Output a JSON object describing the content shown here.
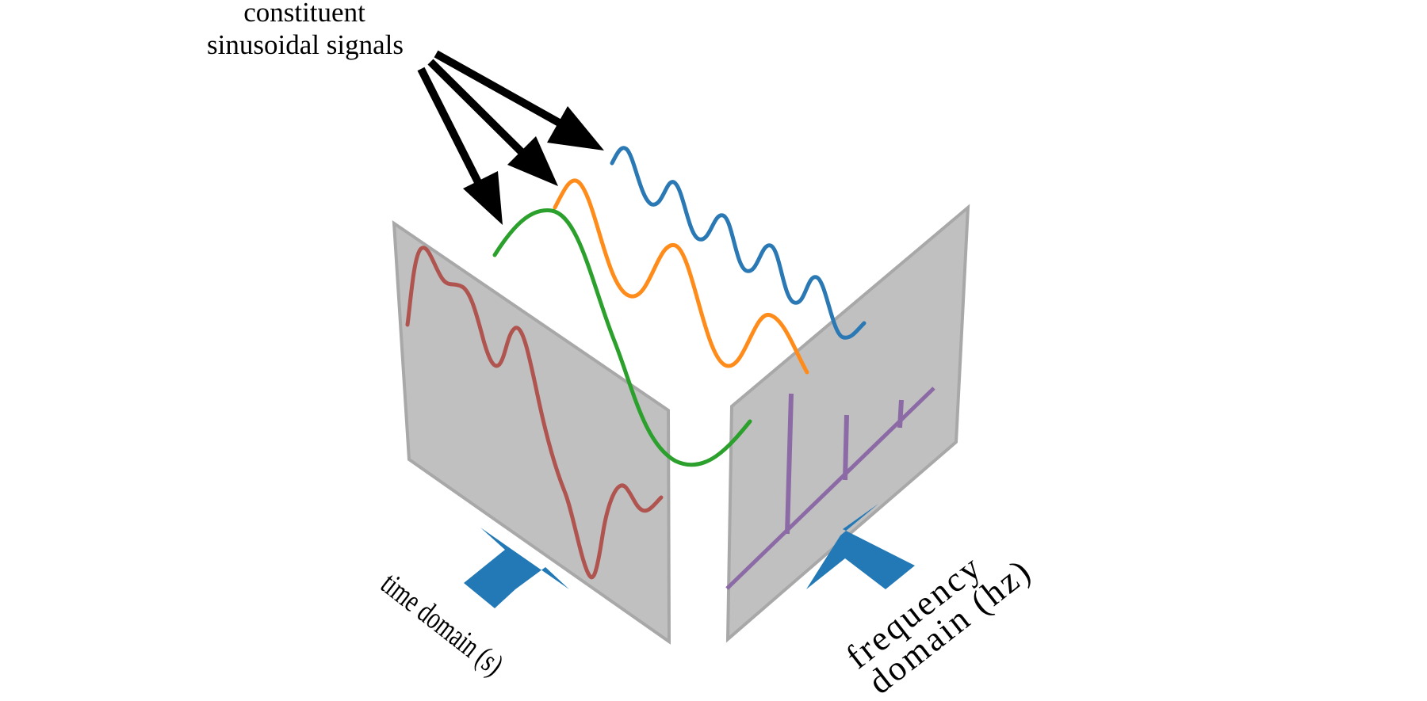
{
  "annotation": {
    "line1": "constituent",
    "line2": "sinusoidal signals"
  },
  "time_domain": {
    "label": "time domain (s)"
  },
  "frequency_domain": {
    "label_line1": "frequency",
    "label_line2": "domain (hz)"
  },
  "colors": {
    "panel_fill": "#c0c0c0",
    "panel_stroke": "#a8a8a8",
    "signal_high": "#2a78b4",
    "signal_mid": "#ff8c1a",
    "signal_low": "#2ca02c",
    "sum_signal": "#b05450",
    "spectrum": "#8c6aa6",
    "view_arrow": "#2379b5",
    "pointer_arrow": "#000000"
  },
  "spectrum_peaks": [
    {
      "signal": "low",
      "relative_height": 1.0
    },
    {
      "signal": "mid",
      "relative_height": 0.55
    },
    {
      "signal": "high",
      "relative_height": 0.3
    }
  ]
}
